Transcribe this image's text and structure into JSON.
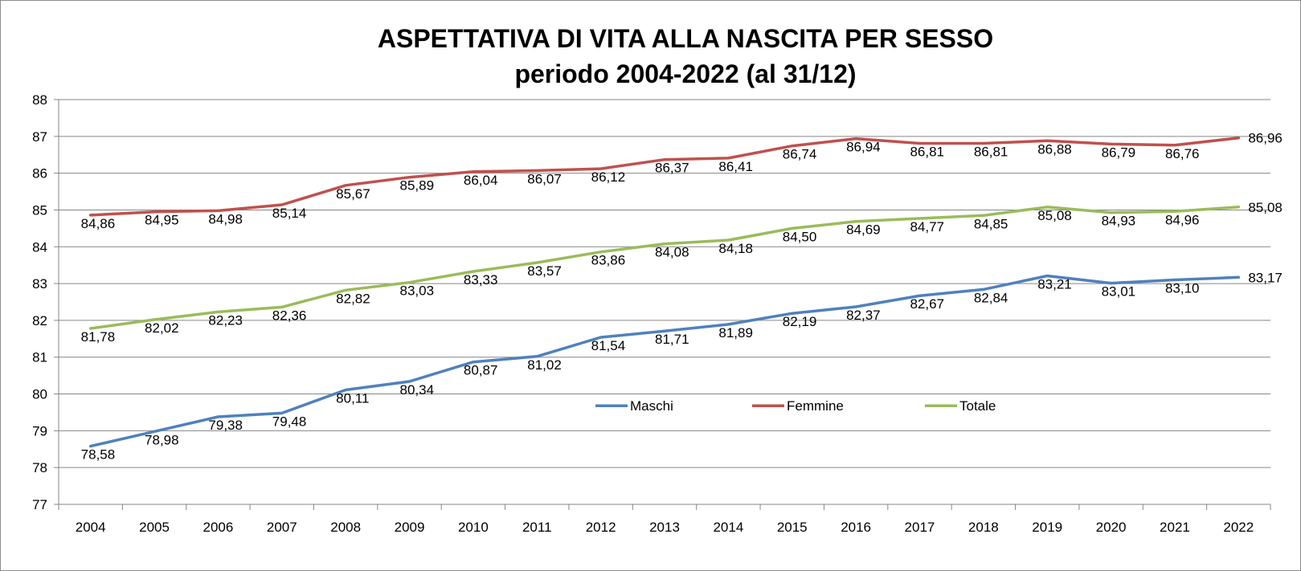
{
  "chart_data": {
    "type": "line",
    "title": "ASPETTATIVA DI VITA ALLA NASCITA PER SESSO",
    "subtitle": "periodo 2004-2022 (al 31/12)",
    "xlabel": "",
    "ylabel": "",
    "ylim": [
      77,
      88
    ],
    "yticks": [
      77,
      78,
      79,
      80,
      81,
      82,
      83,
      84,
      85,
      86,
      87,
      88
    ],
    "grid": true,
    "legend_position": "inside-lower-middle",
    "categories": [
      "2004",
      "2005",
      "2006",
      "2007",
      "2008",
      "2009",
      "2010",
      "2011",
      "2012",
      "2013",
      "2014",
      "2015",
      "2016",
      "2017",
      "2018",
      "2019",
      "2020",
      "2021",
      "2022"
    ],
    "series": [
      {
        "name": "Maschi",
        "color": "#4f81bd",
        "values": [
          78.58,
          78.98,
          79.38,
          79.48,
          80.11,
          80.34,
          80.87,
          81.02,
          81.54,
          81.71,
          81.89,
          82.19,
          82.37,
          82.67,
          82.84,
          83.21,
          83.01,
          83.1,
          83.17
        ],
        "labels": [
          "78,58",
          "78,98",
          "79,38",
          "79,48",
          "80,11",
          "80,34",
          "80,87",
          "81,02",
          "81,54",
          "81,71",
          "81,89",
          "82,19",
          "82,37",
          "82,67",
          "82,84",
          "83,21",
          "83,01",
          "83,10",
          "83,17"
        ]
      },
      {
        "name": "Femmine",
        "color": "#c0504d",
        "values": [
          84.86,
          84.95,
          84.98,
          85.14,
          85.67,
          85.89,
          86.04,
          86.07,
          86.12,
          86.37,
          86.41,
          86.74,
          86.94,
          86.81,
          86.81,
          86.88,
          86.79,
          86.76,
          86.96
        ],
        "labels": [
          "84,86",
          "84,95",
          "84,98",
          "85,14",
          "85,67",
          "85,89",
          "86,04",
          "86,07",
          "86,12",
          "86,37",
          "86,41",
          "86,74",
          "86,94",
          "86,81",
          "86,81",
          "86,88",
          "86,79",
          "86,76",
          "86,96"
        ]
      },
      {
        "name": "Totale",
        "color": "#9bbb59",
        "values": [
          81.78,
          82.02,
          82.23,
          82.36,
          82.82,
          83.03,
          83.33,
          83.57,
          83.86,
          84.08,
          84.18,
          84.5,
          84.69,
          84.77,
          84.85,
          85.08,
          84.93,
          84.96,
          85.08
        ],
        "labels": [
          "81,78",
          "82,02",
          "82,23",
          "82,36",
          "82,82",
          "83,03",
          "83,33",
          "83,57",
          "83,86",
          "84,08",
          "84,18",
          "84,50",
          "84,69",
          "84,77",
          "84,85",
          "85,08",
          "84,93",
          "84,96",
          "85,08"
        ]
      }
    ]
  }
}
